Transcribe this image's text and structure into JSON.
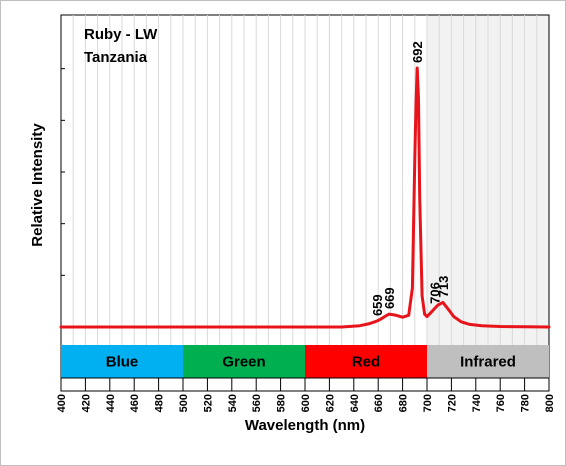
{
  "chart_data": {
    "type": "line",
    "title": "Ruby - LW",
    "subtitle": "Tanzania",
    "xlabel": "Wavelength (nm)",
    "ylabel": "Relative Intensity",
    "xlim": [
      400,
      800
    ],
    "ylim": [
      0,
      100
    ],
    "x_ticks": [
      "400",
      "420",
      "440",
      "460",
      "480",
      "500",
      "520",
      "540",
      "560",
      "580",
      "600",
      "620",
      "640",
      "660",
      "680",
      "700",
      "720",
      "740",
      "760",
      "780",
      "800"
    ],
    "grid": "vertical",
    "infrared_shaded_from": 700,
    "series": [
      {
        "color": "#e8141b",
        "x": [
          400,
          450,
          500,
          550,
          600,
          630,
          645,
          652,
          656,
          659,
          662,
          666,
          669,
          674,
          680,
          685,
          688,
          690,
          691,
          692,
          693,
          694,
          696,
          698,
          700,
          703,
          706,
          709,
          713,
          718,
          722,
          728,
          735,
          745,
          760,
          780,
          800
        ],
        "y": [
          0,
          0,
          0,
          0,
          0,
          0,
          0.5,
          1.2,
          1.8,
          2.3,
          3.0,
          4.2,
          5.0,
          4.6,
          3.8,
          4.5,
          15.0,
          65.0,
          86.0,
          100.0,
          88.0,
          50.0,
          12.0,
          5.0,
          4.0,
          5.5,
          7.0,
          8.5,
          9.5,
          6.5,
          4.0,
          2.0,
          1.0,
          0.5,
          0.2,
          0.1,
          0.0
        ]
      }
    ],
    "peak_labels": [
      {
        "x": 659,
        "y": 2.3,
        "label": "659"
      },
      {
        "x": 669,
        "y": 5.0,
        "label": "669"
      },
      {
        "x": 692,
        "y": 100.0,
        "label": "692"
      },
      {
        "x": 706,
        "y": 7.0,
        "label": "706"
      },
      {
        "x": 713,
        "y": 9.5,
        "label": "713"
      }
    ],
    "bands": [
      {
        "name": "Blue",
        "from": 400,
        "to": 500,
        "color": "#00b0f0"
      },
      {
        "name": "Green",
        "from": 500,
        "to": 600,
        "color": "#00b050"
      },
      {
        "name": "Red",
        "from": 600,
        "to": 700,
        "color": "#ff0000"
      },
      {
        "name": "Infrared",
        "from": 700,
        "to": 800,
        "color": "#bfbfbf"
      }
    ]
  }
}
